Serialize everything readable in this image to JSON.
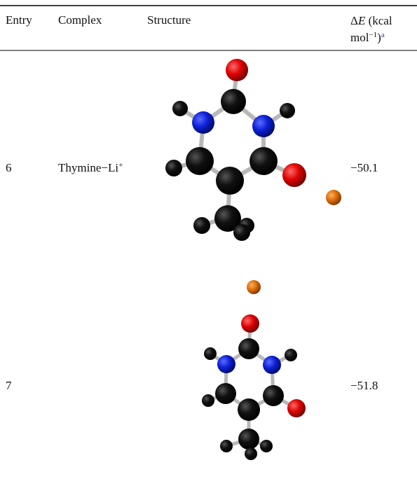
{
  "table": {
    "header": [
      "Entry",
      "Complex",
      "Structure",
      {
        "delta": "Δ",
        "symbol": "E",
        "unit": "(kcal",
        "unit2": "mol",
        "exponent": "−1",
        "close": ")",
        "note": "a"
      }
    ],
    "rows": [
      {
        "entry": "6",
        "complex": {
          "name": "Thymine−Li",
          "charge": "+"
        },
        "energy": "−50.1"
      },
      {
        "entry": "7",
        "energy": "−51.8"
      }
    ]
  }
}
